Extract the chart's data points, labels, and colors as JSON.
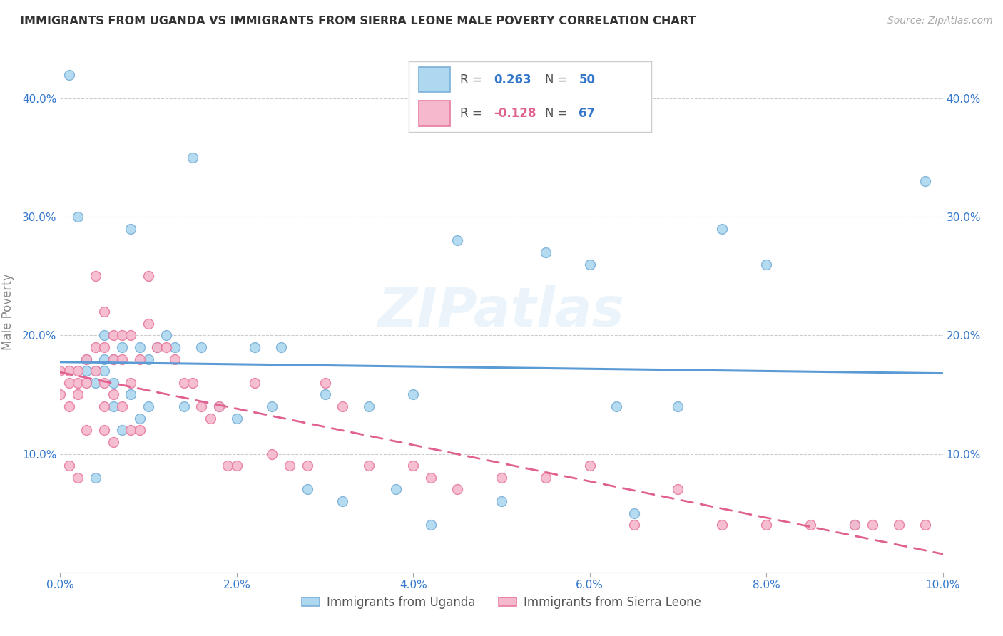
{
  "title": "IMMIGRANTS FROM UGANDA VS IMMIGRANTS FROM SIERRA LEONE MALE POVERTY CORRELATION CHART",
  "source": "Source: ZipAtlas.com",
  "ylabel": "Male Poverty",
  "xlim": [
    0.0,
    0.1
  ],
  "ylim": [
    0.0,
    0.44
  ],
  "xtick_labels": [
    "0.0%",
    "2.0%",
    "4.0%",
    "6.0%",
    "8.0%",
    "10.0%"
  ],
  "xtick_vals": [
    0.0,
    0.02,
    0.04,
    0.06,
    0.08,
    0.1
  ],
  "ytick_vals": [
    0.0,
    0.1,
    0.2,
    0.3,
    0.4
  ],
  "ytick_labels": [
    "",
    "10.0%",
    "20.0%",
    "30.0%",
    "40.0%"
  ],
  "legend_r1_val": "0.263",
  "legend_r2_val": "-0.128",
  "legend_n1": "50",
  "legend_n2": "67",
  "color_uganda": "#add8f0",
  "color_sierra": "#f5b8cc",
  "color_uganda_edge": "#7ab0d8",
  "color_sierra_edge": "#e87aa0",
  "color_uganda_line": "#5b9bd5",
  "color_sierra_line": "#e06090",
  "watermark": "ZIPatlas",
  "legend_label_1": "Immigrants from Uganda",
  "legend_label_2": "Immigrants from Sierra Leone",
  "uganda_x": [
    0.001,
    0.002,
    0.003,
    0.003,
    0.004,
    0.004,
    0.004,
    0.005,
    0.005,
    0.005,
    0.006,
    0.006,
    0.006,
    0.007,
    0.007,
    0.008,
    0.008,
    0.009,
    0.009,
    0.01,
    0.01,
    0.011,
    0.012,
    0.013,
    0.014,
    0.015,
    0.016,
    0.018,
    0.02,
    0.022,
    0.024,
    0.025,
    0.028,
    0.03,
    0.032,
    0.035,
    0.038,
    0.04,
    0.042,
    0.045,
    0.05,
    0.055,
    0.06,
    0.063,
    0.065,
    0.07,
    0.075,
    0.08,
    0.09,
    0.098
  ],
  "uganda_y": [
    0.42,
    0.3,
    0.18,
    0.17,
    0.17,
    0.16,
    0.08,
    0.2,
    0.18,
    0.17,
    0.18,
    0.16,
    0.14,
    0.19,
    0.12,
    0.29,
    0.15,
    0.19,
    0.13,
    0.18,
    0.14,
    0.19,
    0.2,
    0.19,
    0.14,
    0.35,
    0.19,
    0.14,
    0.13,
    0.19,
    0.14,
    0.19,
    0.07,
    0.15,
    0.06,
    0.14,
    0.07,
    0.15,
    0.04,
    0.28,
    0.06,
    0.27,
    0.26,
    0.14,
    0.05,
    0.14,
    0.29,
    0.26,
    0.04,
    0.33
  ],
  "sierra_x": [
    0.0,
    0.0,
    0.001,
    0.001,
    0.001,
    0.001,
    0.002,
    0.002,
    0.002,
    0.002,
    0.003,
    0.003,
    0.003,
    0.004,
    0.004,
    0.004,
    0.005,
    0.005,
    0.005,
    0.005,
    0.005,
    0.006,
    0.006,
    0.006,
    0.006,
    0.007,
    0.007,
    0.007,
    0.008,
    0.008,
    0.008,
    0.009,
    0.009,
    0.01,
    0.01,
    0.011,
    0.012,
    0.013,
    0.014,
    0.015,
    0.016,
    0.017,
    0.018,
    0.019,
    0.02,
    0.022,
    0.024,
    0.026,
    0.028,
    0.03,
    0.032,
    0.035,
    0.04,
    0.042,
    0.045,
    0.05,
    0.055,
    0.06,
    0.065,
    0.07,
    0.075,
    0.08,
    0.085,
    0.09,
    0.092,
    0.095,
    0.098
  ],
  "sierra_y": [
    0.17,
    0.15,
    0.17,
    0.16,
    0.14,
    0.09,
    0.17,
    0.16,
    0.15,
    0.08,
    0.18,
    0.16,
    0.12,
    0.25,
    0.19,
    0.17,
    0.22,
    0.19,
    0.16,
    0.14,
    0.12,
    0.2,
    0.18,
    0.15,
    0.11,
    0.2,
    0.18,
    0.14,
    0.2,
    0.16,
    0.12,
    0.18,
    0.12,
    0.25,
    0.21,
    0.19,
    0.19,
    0.18,
    0.16,
    0.16,
    0.14,
    0.13,
    0.14,
    0.09,
    0.09,
    0.16,
    0.1,
    0.09,
    0.09,
    0.16,
    0.14,
    0.09,
    0.09,
    0.08,
    0.07,
    0.08,
    0.08,
    0.09,
    0.04,
    0.07,
    0.04,
    0.04,
    0.04,
    0.04,
    0.04,
    0.04,
    0.04
  ]
}
